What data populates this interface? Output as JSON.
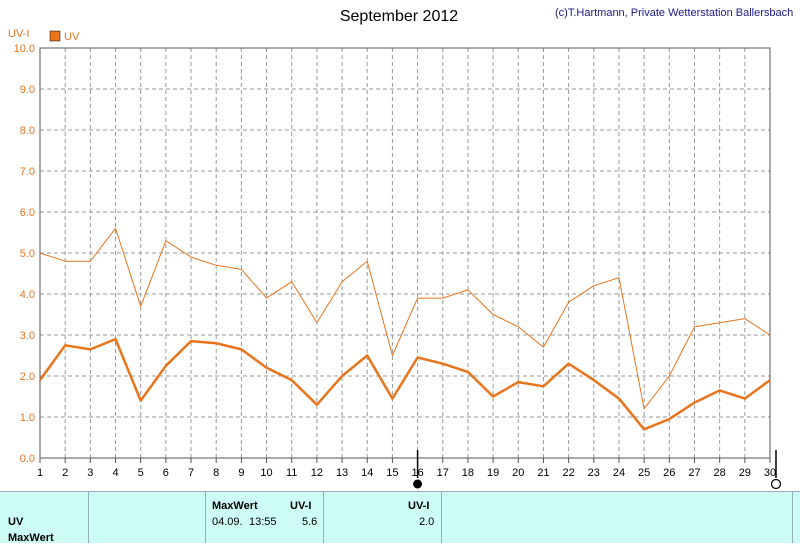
{
  "header": {
    "title": "September 2012",
    "credit": "(c)T.Hartmann, Private Wetterstation Ballersbach"
  },
  "chart_data": {
    "type": "line",
    "ylabel": "UV-I",
    "ylim": [
      0,
      10
    ],
    "yticks": [
      "0.0",
      "1.0",
      "2.0",
      "3.0",
      "4.0",
      "5.0",
      "6.0",
      "7.0",
      "8.0",
      "9.0",
      "10.0"
    ],
    "x": [
      "1",
      "2",
      "3",
      "4",
      "5",
      "6",
      "7",
      "8",
      "9",
      "10",
      "11",
      "12",
      "13",
      "14",
      "15",
      "16",
      "17",
      "18",
      "19",
      "20",
      "21",
      "22",
      "23",
      "24",
      "25",
      "26",
      "27",
      "28",
      "29",
      "30"
    ],
    "legend": "UV",
    "grid": true,
    "series": [
      {
        "name": "UV",
        "role": "max",
        "color": "#e8741c",
        "values": [
          5.0,
          4.8,
          4.8,
          5.6,
          3.7,
          5.3,
          4.9,
          4.7,
          4.6,
          3.9,
          4.3,
          3.3,
          4.3,
          4.8,
          2.5,
          3.9,
          3.9,
          4.1,
          3.5,
          3.2,
          2.7,
          3.8,
          4.2,
          4.4,
          1.2,
          2.0,
          3.2,
          3.3,
          3.4,
          3.0
        ]
      },
      {
        "name": "UV",
        "role": "mean",
        "color": "#e8741c",
        "values": [
          1.9,
          2.75,
          2.65,
          2.9,
          1.4,
          2.25,
          2.85,
          2.8,
          2.65,
          2.2,
          1.9,
          1.3,
          2.0,
          2.5,
          1.45,
          2.45,
          2.3,
          2.1,
          1.5,
          1.85,
          1.75,
          2.3,
          1.9,
          1.45,
          0.7,
          0.95,
          1.35,
          1.65,
          1.45,
          1.9
        ]
      }
    ]
  },
  "markers": {
    "filled_day": "16",
    "open_day": "30"
  },
  "info_panel": {
    "row1_label": "UV",
    "row2_label": "MaxWert",
    "max_header": "MaxWert",
    "max_unit": "UV-I",
    "max_date": "04.09.",
    "max_time": "13:55",
    "max_value": "5.6",
    "col3_unit": "UV-I",
    "col3_value": "2.0"
  }
}
